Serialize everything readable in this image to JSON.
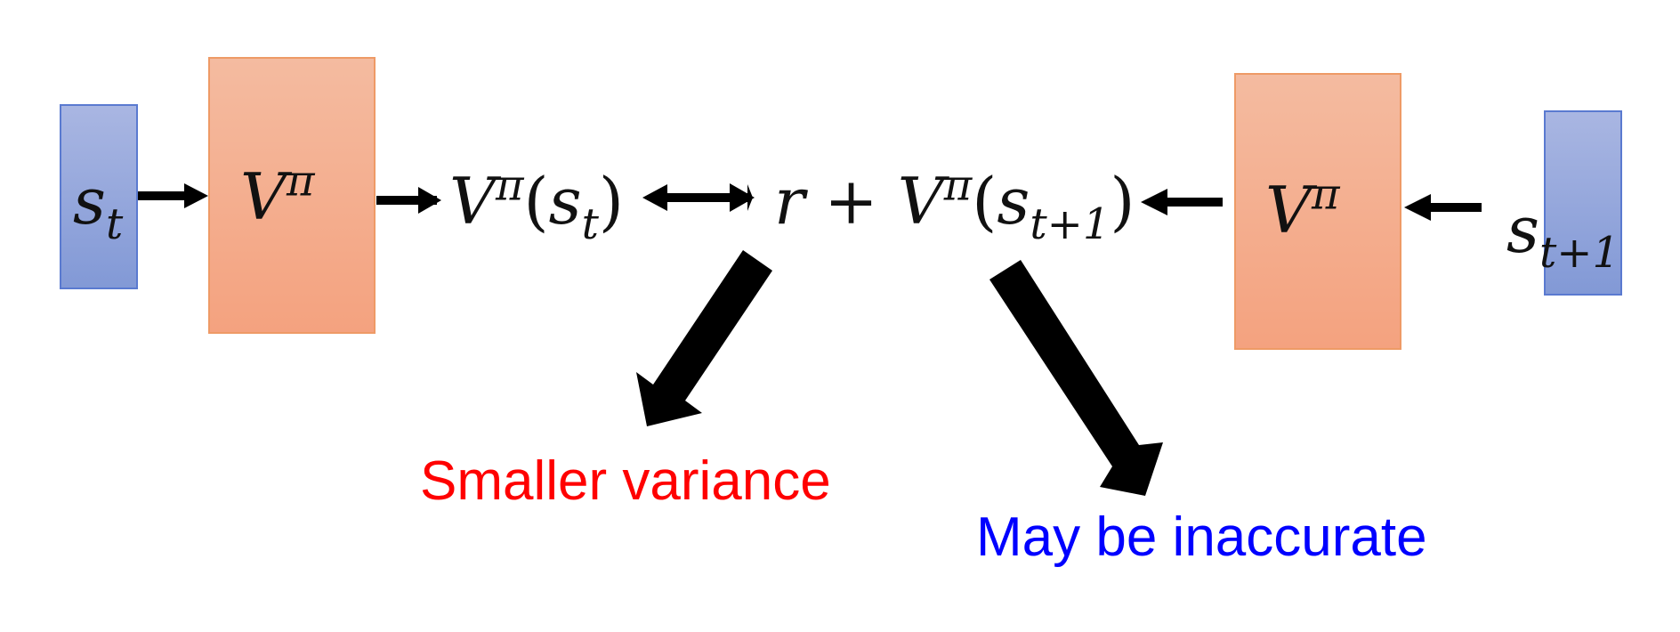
{
  "symbols": {
    "state": "s",
    "state_sub_t": "t",
    "state_sub_t1": "t+1",
    "value": "V",
    "policy": "π",
    "reward": "r",
    "plus": "+",
    "lparen": "(",
    "rparen": ")"
  },
  "captions": {
    "left": "Smaller variance",
    "right": "May be inaccurate"
  },
  "colors": {
    "state_box": "#8fa3da",
    "value_box": "#f5ad8a",
    "caption_left": "#ff0000",
    "caption_right": "#0000ff",
    "arrow": "#000000"
  }
}
